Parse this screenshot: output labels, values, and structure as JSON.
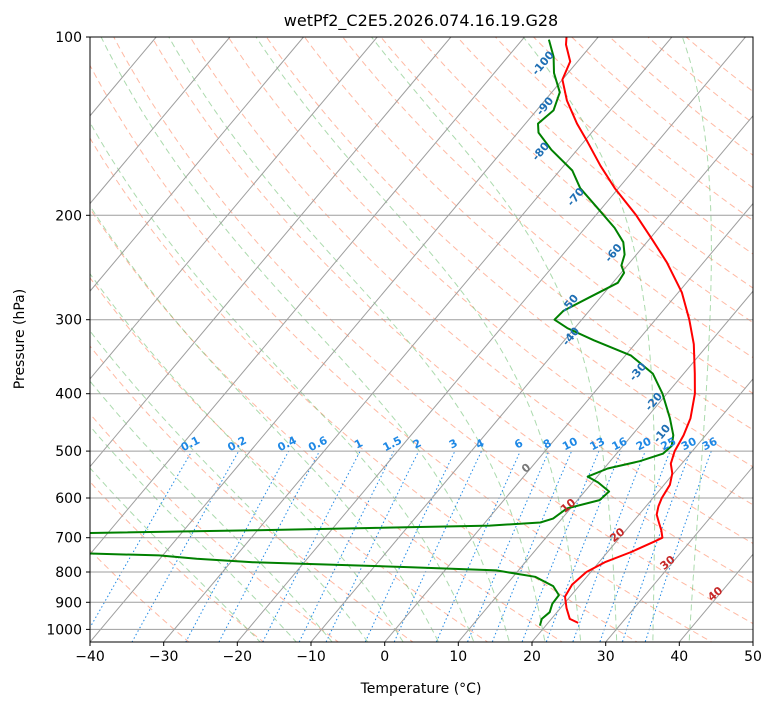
{
  "chart_data": {
    "type": "skew-t",
    "title": "wetPf2_C2E5.2026.074.16.19.G28",
    "xlabel": "Temperature (°C)",
    "ylabel": "Pressure (hPa)",
    "xlim": [
      -40,
      50
    ],
    "ylim": [
      1050,
      100
    ],
    "x_ticks": [
      -40,
      -30,
      -20,
      -10,
      0,
      10,
      20,
      30,
      40,
      50
    ],
    "x_tick_labels": [
      "−40",
      "−30",
      "−20",
      "−10",
      "0",
      "10",
      "20",
      "30",
      "40",
      "50"
    ],
    "y_ticks": [
      100,
      200,
      300,
      400,
      500,
      600,
      700,
      800,
      900,
      1000
    ],
    "y_tick_labels": [
      "100",
      "200",
      "300",
      "400",
      "500",
      "600",
      "700",
      "800",
      "900",
      "1000"
    ],
    "grid": true,
    "series": [
      {
        "name": "temperature",
        "color": "#ff0000",
        "points": [
          {
            "p": 975,
            "t": 24.1
          },
          {
            "p": 960,
            "t": 22.5
          },
          {
            "p": 920,
            "t": 20.8
          },
          {
            "p": 880,
            "t": 19.3
          },
          {
            "p": 840,
            "t": 18.9
          },
          {
            "p": 800,
            "t": 19.4
          },
          {
            "p": 770,
            "t": 20.8
          },
          {
            "p": 740,
            "t": 23.2
          },
          {
            "p": 710,
            "t": 25.2
          },
          {
            "p": 700,
            "t": 25.8
          },
          {
            "p": 680,
            "t": 24.8
          },
          {
            "p": 660,
            "t": 23.6
          },
          {
            "p": 640,
            "t": 22.4
          },
          {
            "p": 620,
            "t": 21.7
          },
          {
            "p": 600,
            "t": 21.2
          },
          {
            "p": 570,
            "t": 20.8
          },
          {
            "p": 545,
            "t": 19.8
          },
          {
            "p": 525,
            "t": 18.5
          },
          {
            "p": 500,
            "t": 17.6
          },
          {
            "p": 470,
            "t": 17.0
          },
          {
            "p": 440,
            "t": 16.0
          },
          {
            "p": 400,
            "t": 13.8
          },
          {
            "p": 370,
            "t": 11.5
          },
          {
            "p": 330,
            "t": 8.0
          },
          {
            "p": 300,
            "t": 4.6
          },
          {
            "p": 270,
            "t": 0.5
          },
          {
            "p": 240,
            "t": -5.0
          },
          {
            "p": 220,
            "t": -9.5
          },
          {
            "p": 200,
            "t": -14.5
          },
          {
            "p": 180,
            "t": -20.5
          },
          {
            "p": 165,
            "t": -25.0
          },
          {
            "p": 150,
            "t": -29.6
          },
          {
            "p": 140,
            "t": -33.0
          },
          {
            "p": 128,
            "t": -37.0
          },
          {
            "p": 118,
            "t": -40.0
          },
          {
            "p": 110,
            "t": -41.0
          },
          {
            "p": 103,
            "t": -43.5
          },
          {
            "p": 100,
            "t": -44.3
          }
        ]
      },
      {
        "name": "dewpoint",
        "color": "#008000",
        "points": [
          {
            "p": 985,
            "t": 19.2
          },
          {
            "p": 960,
            "t": 18.7
          },
          {
            "p": 935,
            "t": 19.0
          },
          {
            "p": 905,
            "t": 18.4
          },
          {
            "p": 875,
            "t": 18.3
          },
          {
            "p": 845,
            "t": 16.5
          },
          {
            "p": 815,
            "t": 13.0
          },
          {
            "p": 795,
            "t": 7.0
          },
          {
            "p": 785,
            "t": -5.0
          },
          {
            "p": 770,
            "t": -27.0
          },
          {
            "p": 760,
            "t": -35.0
          },
          {
            "p": 750,
            "t": -40.5
          },
          {
            "p": 740,
            "t": -58.0
          },
          {
            "p": 705,
            "t": -75.0
          },
          {
            "p": 695,
            "t": -90.0
          },
          {
            "p": 690,
            "t": -60.0
          },
          {
            "p": 680,
            "t": -30.0
          },
          {
            "p": 668,
            "t": 1.0
          },
          {
            "p": 660,
            "t": 7.5
          },
          {
            "p": 650,
            "t": 8.8
          },
          {
            "p": 625,
            "t": 9.5
          },
          {
            "p": 605,
            "t": 13.0
          },
          {
            "p": 585,
            "t": 13.3
          },
          {
            "p": 565,
            "t": 10.8
          },
          {
            "p": 552,
            "t": 8.7
          },
          {
            "p": 535,
            "t": 10.5
          },
          {
            "p": 520,
            "t": 14.0
          },
          {
            "p": 505,
            "t": 16.3
          },
          {
            "p": 490,
            "t": 16.6
          },
          {
            "p": 470,
            "t": 15.6
          },
          {
            "p": 440,
            "t": 13.2
          },
          {
            "p": 400,
            "t": 9.4
          },
          {
            "p": 370,
            "t": 5.8
          },
          {
            "p": 345,
            "t": 0.8
          },
          {
            "p": 325,
            "t": -6.0
          },
          {
            "p": 310,
            "t": -11.0
          },
          {
            "p": 300,
            "t": -13.7
          },
          {
            "p": 290,
            "t": -13.5
          },
          {
            "p": 275,
            "t": -11.5
          },
          {
            "p": 260,
            "t": -9.3
          },
          {
            "p": 250,
            "t": -9.6
          },
          {
            "p": 243,
            "t": -10.8
          },
          {
            "p": 233,
            "t": -11.6
          },
          {
            "p": 222,
            "t": -13.2
          },
          {
            "p": 210,
            "t": -16.0
          },
          {
            "p": 195,
            "t": -20.4
          },
          {
            "p": 180,
            "t": -25.2
          },
          {
            "p": 168,
            "t": -28.3
          },
          {
            "p": 155,
            "t": -33.5
          },
          {
            "p": 145,
            "t": -37.2
          },
          {
            "p": 140,
            "t": -38.3
          },
          {
            "p": 133,
            "t": -37.7
          },
          {
            "p": 124,
            "t": -38.9
          },
          {
            "p": 115,
            "t": -41.9
          },
          {
            "p": 108,
            "t": -43.8
          },
          {
            "p": 101,
            "t": -46.4
          }
        ]
      }
    ],
    "dry_adiabats_c": [
      -30,
      -20,
      -10,
      0,
      10,
      20,
      30,
      40,
      50,
      60,
      70,
      80,
      90,
      100,
      110,
      120,
      130,
      140,
      150,
      160,
      170,
      180,
      190,
      200
    ],
    "moist_adiabats_c": [
      -20,
      -15,
      -10,
      -5,
      0,
      5,
      10,
      15,
      20,
      25,
      30,
      35,
      40
    ],
    "mixing_ratios_gkg": [
      "0.1",
      "0.2",
      "0.4",
      "0.6",
      "1",
      "1.5",
      "2",
      "3",
      "4",
      "6",
      "8",
      "10",
      "13",
      "16",
      "20",
      "25",
      "30",
      "36"
    ],
    "mixing_ratio_label_pressure_hpa": 500,
    "wet_bulb_labels": [
      {
        "text": "-100",
        "p": 110
      },
      {
        "text": "-90",
        "p": 130
      },
      {
        "text": "-80",
        "p": 155
      },
      {
        "text": "-70",
        "p": 185
      },
      {
        "text": "-60",
        "p": 230
      },
      {
        "text": "-50",
        "p": 280
      },
      {
        "text": "-40",
        "p": 318
      },
      {
        "text": "-30",
        "p": 365
      },
      {
        "text": "-20",
        "p": 410
      },
      {
        "text": "-10",
        "p": 464
      }
    ],
    "temperature_labels": [
      {
        "text": "0",
        "t": 0,
        "p": 540
      },
      {
        "text": "10",
        "t": 10,
        "p": 625
      },
      {
        "text": "20",
        "t": 20,
        "p": 700
      },
      {
        "text": "30",
        "t": 30,
        "p": 780
      },
      {
        "text": "40",
        "t": 40,
        "p": 880
      }
    ],
    "colors": {
      "temperature": "#ff0000",
      "dewpoint": "#008000",
      "dry_adiabat": "#ff8a65",
      "moist_adiabat": "#66bb6a",
      "mixing_ratio": "#1e88e5",
      "isotherm": "#9e9e9e",
      "isobar": "#9e9e9e",
      "wet_bulb_label": "#1f6fb4",
      "temperature_label": "#c62828",
      "zero_label": "#777777"
    }
  }
}
